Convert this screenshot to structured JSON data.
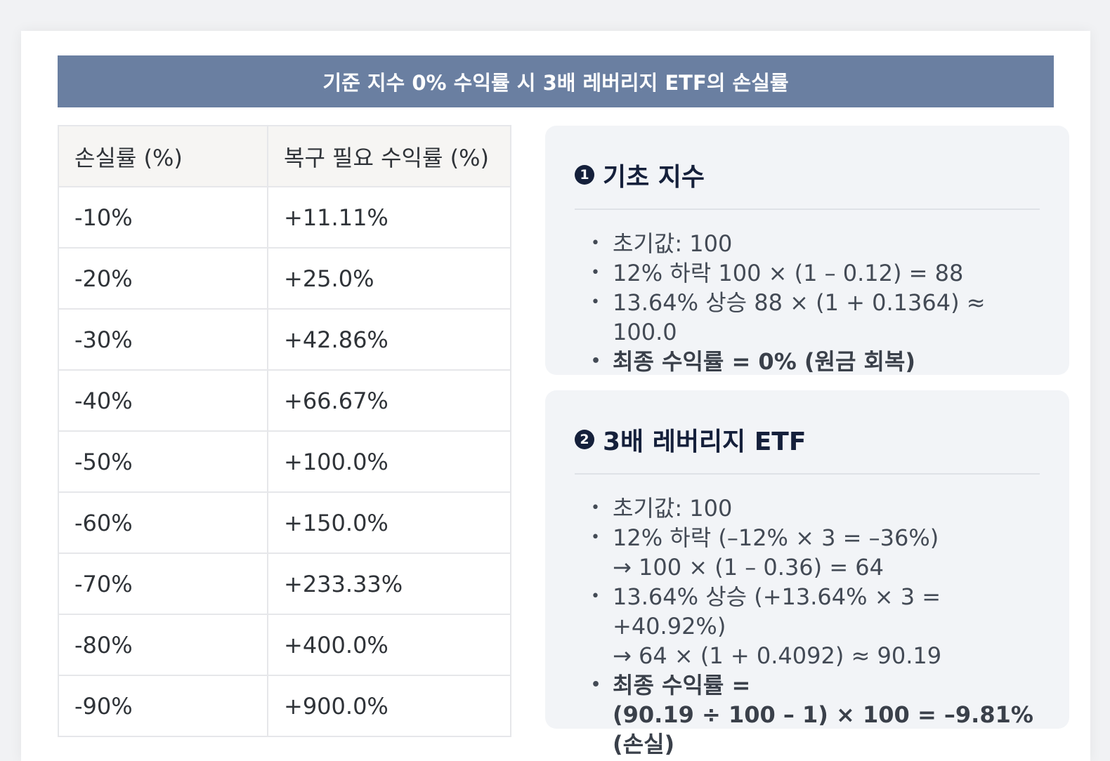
{
  "banner_title": "기준 지수 0% 수익률 시 3배 레버리지 ETF의 손실률",
  "table": {
    "headers": [
      "손실률 (%)",
      "복구 필요 수익률 (%)"
    ],
    "rows": [
      [
        "-10%",
        "+11.11%"
      ],
      [
        "-20%",
        "+25.0%"
      ],
      [
        "-30%",
        "+42.86%"
      ],
      [
        "-40%",
        "+66.67%"
      ],
      [
        "-50%",
        "+100.0%"
      ],
      [
        "-60%",
        "+150.0%"
      ],
      [
        "-70%",
        "+233.33%"
      ],
      [
        "-80%",
        "+400.0%"
      ],
      [
        "-90%",
        "+900.0%"
      ]
    ]
  },
  "panel1": {
    "number": "1",
    "title": "기초 지수",
    "items": [
      "초기값: 100",
      "12% 하락 100 × (1 – 0.12) = 88",
      "13.64% 상승 88 × (1 + 0.1364) ≈ 100.0",
      "최종 수익률 = 0% (원금 회복)"
    ]
  },
  "panel2": {
    "number": "2",
    "title": "3배 레버리지 ETF",
    "items": [
      {
        "line1": "초기값: 100"
      },
      {
        "line1": "12% 하락 (–12% × 3 = –36%)",
        "line2": "→ 100 × (1 – 0.36) = 64"
      },
      {
        "line1": "13.64% 상승 (+13.64% × 3 = +40.92%)",
        "line2": "→ 64 × (1 + 0.4092) ≈ 90.19"
      },
      {
        "line1": "최종 수익률 =",
        "line2": "(90.19 ÷ 100 – 1) × 100 = –9.81% (손실)"
      }
    ]
  }
}
